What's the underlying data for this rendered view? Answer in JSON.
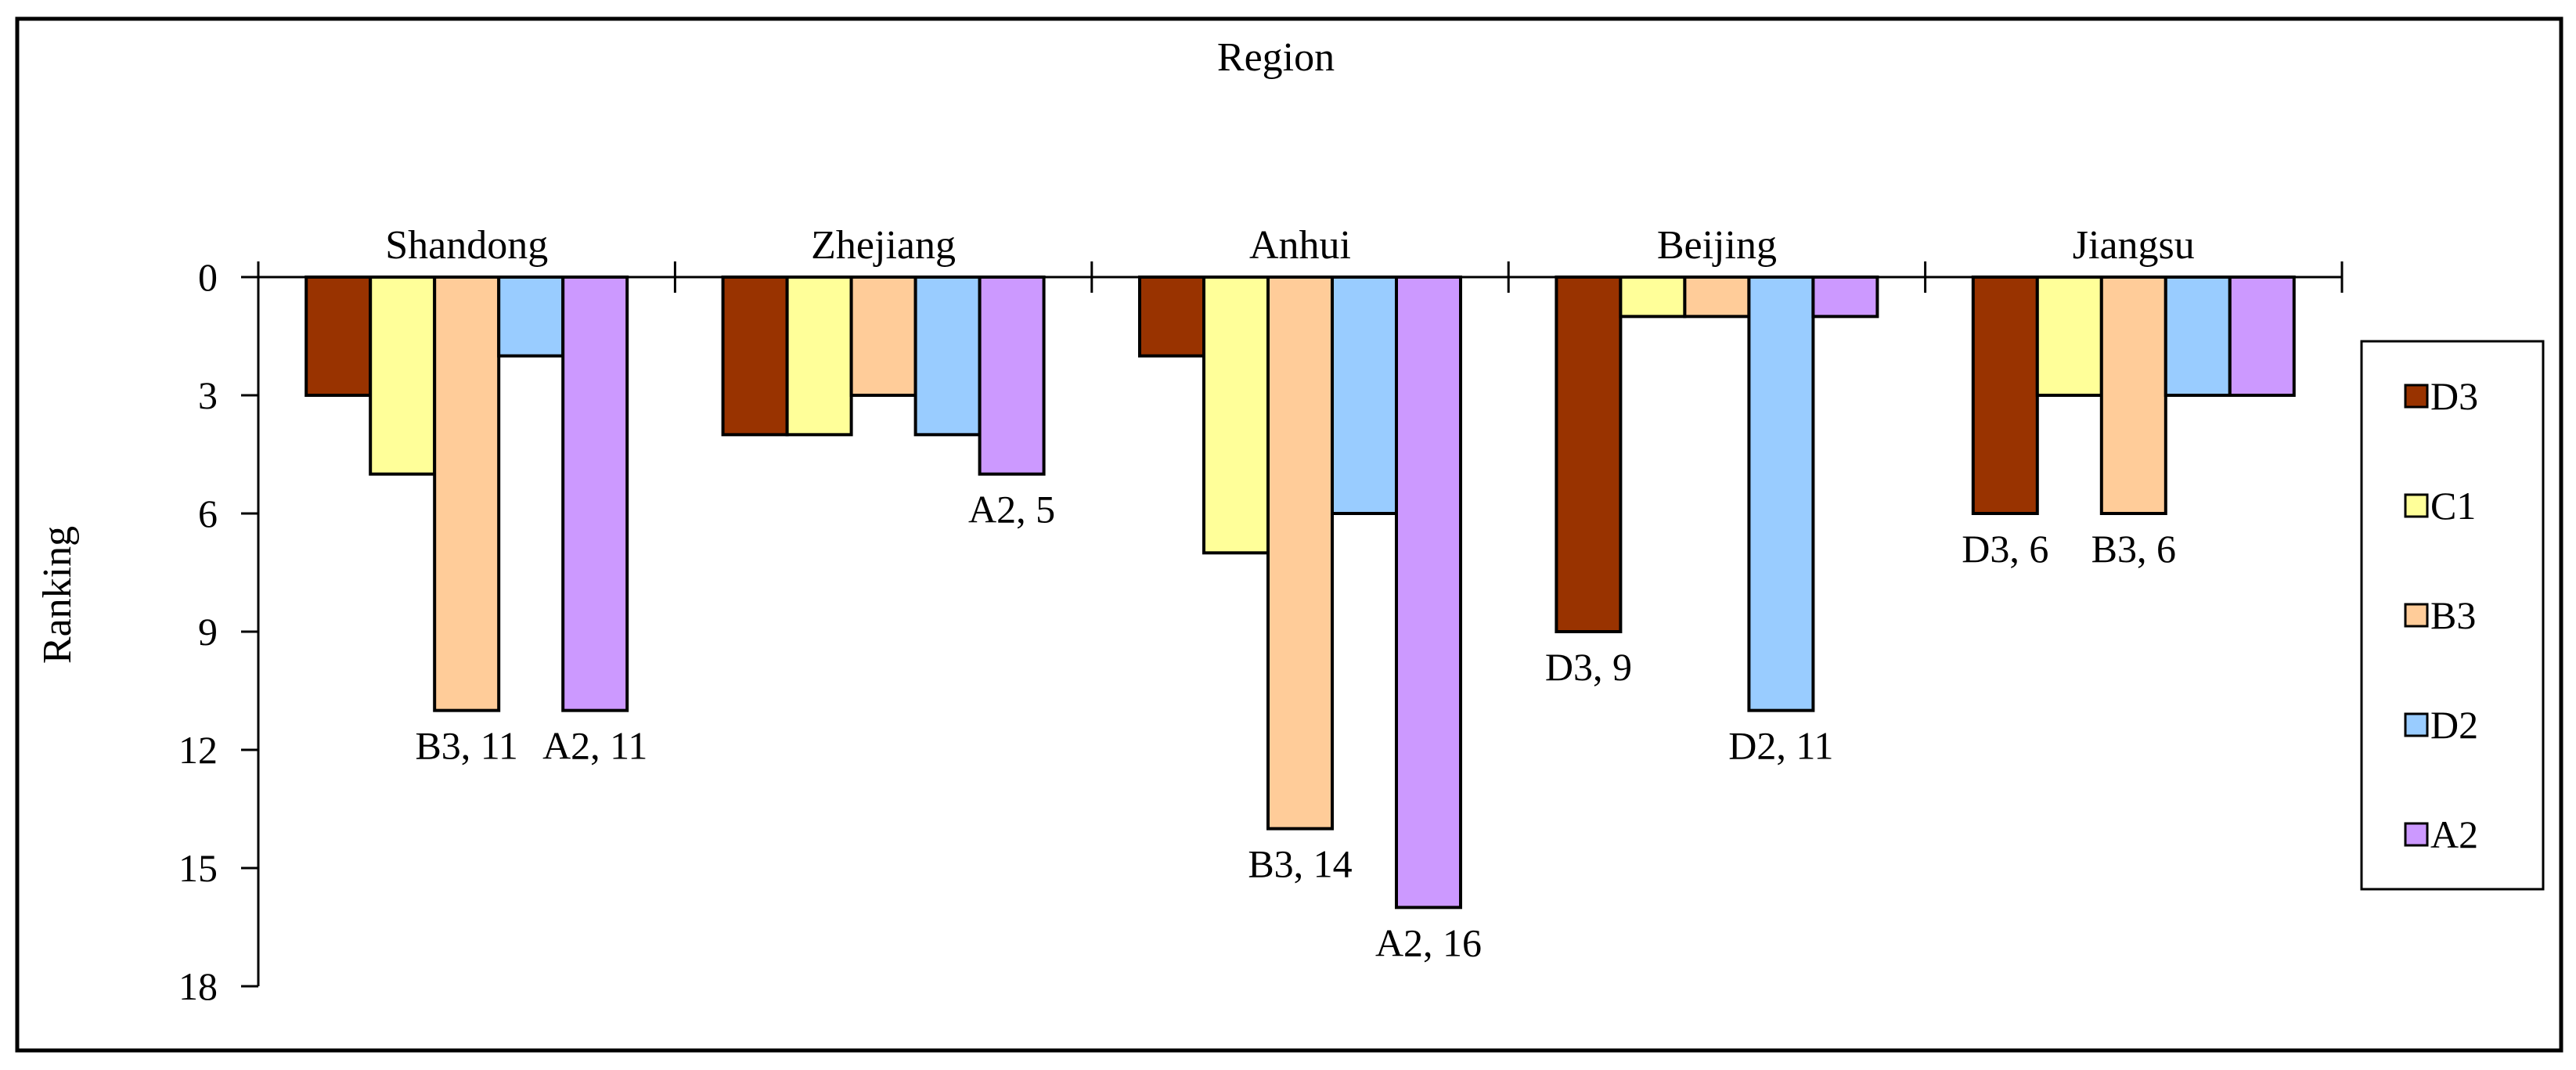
{
  "chart_data": {
    "type": "bar",
    "title": "Region",
    "xlabel": "Region",
    "ylabel": "Ranking",
    "ylim": [
      0,
      18
    ],
    "y_inverted": true,
    "yticks": [
      0,
      3,
      6,
      9,
      12,
      15,
      18
    ],
    "categories": [
      "Shandong",
      "Zhejiang",
      "Anhui",
      "Beijing",
      "Jiangsu"
    ],
    "series": [
      {
        "name": "D3",
        "color": "#993300",
        "values": [
          3,
          4,
          2,
          9,
          6
        ]
      },
      {
        "name": "C1",
        "color": "#FFFF99",
        "values": [
          5,
          4,
          7,
          1,
          3
        ]
      },
      {
        "name": "B3",
        "color": "#FFCC99",
        "values": [
          11,
          3,
          14,
          1,
          6
        ]
      },
      {
        "name": "D2",
        "color": "#99CCFF",
        "values": [
          2,
          4,
          6,
          11,
          3
        ]
      },
      {
        "name": "A2",
        "color": "#CC99FF",
        "values": [
          11,
          5,
          16,
          1,
          3
        ]
      }
    ],
    "data_labels": [
      {
        "category": "Shandong",
        "series": "B3",
        "text": "B3, 11"
      },
      {
        "category": "Shandong",
        "series": "A2",
        "text": "A2, 11"
      },
      {
        "category": "Zhejiang",
        "series": "A2",
        "text": "A2, 5"
      },
      {
        "category": "Anhui",
        "series": "B3",
        "text": "B3, 14"
      },
      {
        "category": "Anhui",
        "series": "A2",
        "text": "A2, 16"
      },
      {
        "category": "Beijing",
        "series": "D3",
        "text": "D3, 9"
      },
      {
        "category": "Beijing",
        "series": "D2",
        "text": "D2, 11"
      },
      {
        "category": "Jiangsu",
        "series": "D3",
        "text": "D3, 6"
      },
      {
        "category": "Jiangsu",
        "series": "B3",
        "text": "B3, 6"
      }
    ],
    "legend_position": "right",
    "grid": false
  }
}
